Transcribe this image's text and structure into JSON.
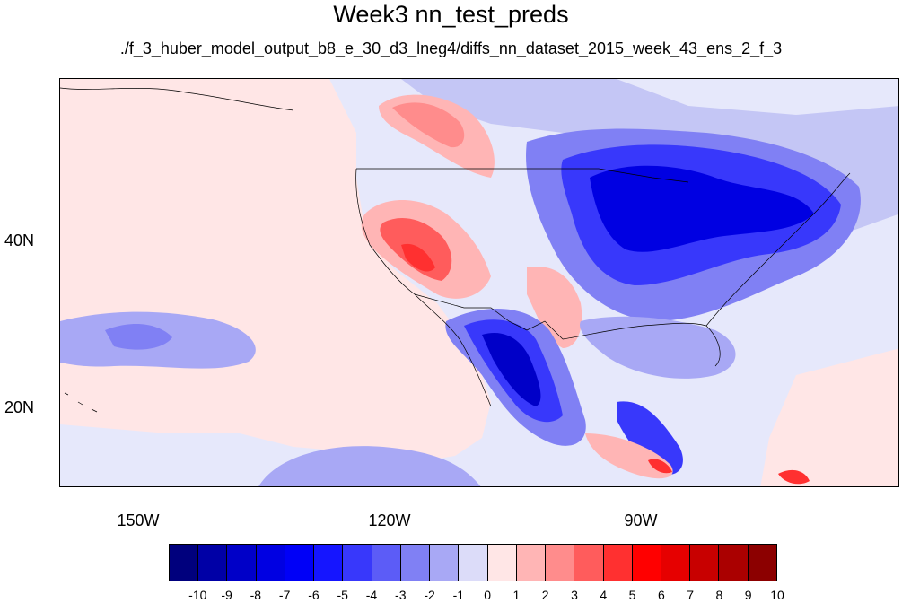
{
  "title": "Week3 nn_test_preds",
  "subtitle": "./f_3_huber_model_output_b8_e_30_d3_lneg4/diffs_nn_dataset_2015_week_43_ens_2_f_3",
  "map": {
    "background_color": "#e6e8fb",
    "lat_labels": [
      "40N",
      "20N"
    ],
    "lon_labels": [
      "150W",
      "120W",
      "90W"
    ]
  },
  "colorbar": {
    "colors": [
      "#00007d",
      "#0000a6",
      "#0000c8",
      "#0000e2",
      "#0000f7",
      "#1515ff",
      "#3838fb",
      "#5c5cf7",
      "#8080f4",
      "#a8a8f5",
      "#dcdcf9",
      "#ffe6e6",
      "#ffb5b5",
      "#ff8c8c",
      "#ff5c5c",
      "#ff3030",
      "#ff0000",
      "#e60000",
      "#c80000",
      "#aa0000",
      "#8c0000"
    ],
    "labels": [
      "-10",
      "-9",
      "-8",
      "-7",
      "-6",
      "-5",
      "-4",
      "-3",
      "-2",
      "-1",
      "0",
      "1",
      "2",
      "3",
      "4",
      "5",
      "6",
      "7",
      "8",
      "9",
      "10"
    ]
  }
}
